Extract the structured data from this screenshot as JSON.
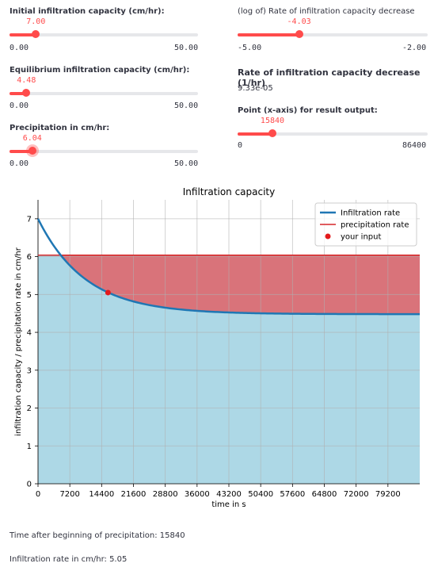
{
  "sliders": {
    "initial": {
      "label": "Initial infiltration capacity (cm/hr):",
      "value": "7.00",
      "min": "0.00",
      "max": "50.00",
      "fraction": 0.14,
      "focused": false
    },
    "equilibrium": {
      "label": "Equilibrium infiltration capacity (cm/hr):",
      "value": "4.48",
      "min": "0.00",
      "max": "50.00",
      "fraction": 0.0896,
      "focused": false
    },
    "precipitation": {
      "label": "Precipitation in cm/hr:",
      "value": "6.04",
      "min": "0.00",
      "max": "50.00",
      "fraction": 0.1208,
      "focused": true
    },
    "lograte": {
      "label": "(log of) Rate of infiltration capacity decrease",
      "value": "-4.03",
      "min": "-5.00",
      "max": "-2.00",
      "fraction": 0.3233,
      "focused": false
    },
    "point": {
      "label": "Point (x-axis) for result output:",
      "value": "15840",
      "min": "0",
      "max": "86400",
      "fraction": 0.1833,
      "focused": false
    }
  },
  "rate_heading": "Rate of infiltration capacity decrease (1/hr)",
  "rate_value": "9.33e-05",
  "chart_data": {
    "type": "line",
    "title": "Infiltration capacity",
    "xlabel": "time in s",
    "ylabel": "infiltration capacity / precipitation rate in cm/hr",
    "xlim": [
      0,
      86400
    ],
    "ylim": [
      0,
      7.5
    ],
    "xticks": [
      0,
      7200,
      14400,
      21600,
      28800,
      36000,
      43200,
      50400,
      57600,
      64800,
      72000,
      79200
    ],
    "yticks": [
      0,
      1,
      2,
      3,
      4,
      5,
      6,
      7
    ],
    "grid": true,
    "legend_position": "top-right",
    "f0": 7.0,
    "fc": 4.48,
    "k": 9.33e-05,
    "precipitation": 6.04,
    "point": {
      "x": 15840,
      "y": 5.05
    },
    "series": [
      {
        "name": "Infiltration rate",
        "color": "#1f77b4"
      },
      {
        "name": "precipitation rate",
        "color": "#d62728"
      },
      {
        "name": "your input",
        "color": "#e31a1c"
      }
    ],
    "fill_colors": {
      "runoff": "#d9737a",
      "infiltrated": "#add8e6"
    }
  },
  "results": {
    "time_text": "Time after beginning of precipitation: 15840",
    "rate_text": "Infiltration rate in cm/hr: 5.05"
  }
}
